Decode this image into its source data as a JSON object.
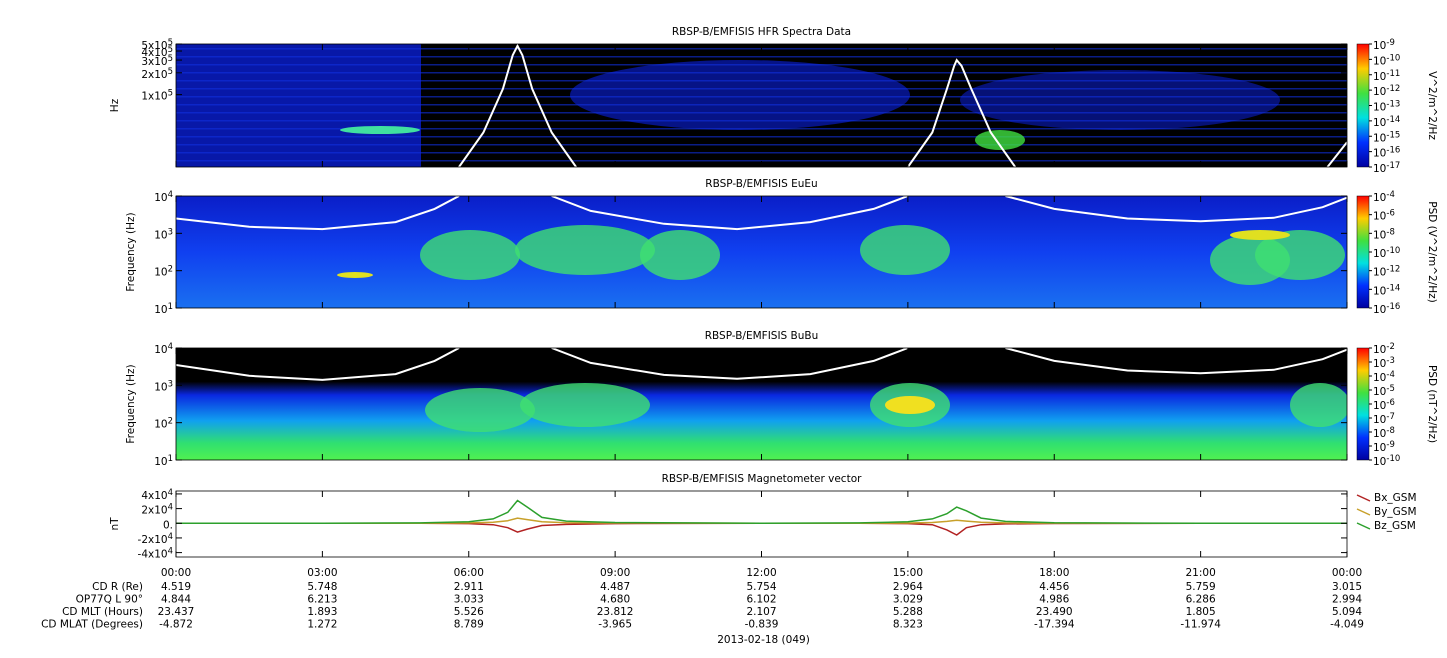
{
  "chart_data": [
    {
      "type": "spectrogram",
      "title": "RBSP-B/EMFISIS  HFR Spectra Data",
      "ylabel": "Hz",
      "log_y": true,
      "xlim": [
        0,
        24
      ],
      "ylim": [
        10000,
        500000
      ],
      "yticks": [
        {
          "value": 100000,
          "label": "1x10^5"
        },
        {
          "value": 200000,
          "label": "2x10^5"
        },
        {
          "value": 300000,
          "label": "3x10^5"
        },
        {
          "value": 400000,
          "label": "4x10^5"
        },
        {
          "value": 500000,
          "label": "5x10^5"
        }
      ],
      "colorbar": {
        "label": "V^2/m^2/Hz",
        "lim": [
          1e-17,
          1e-09
        ],
        "ticks": [
          {
            "value": 1e-09,
            "label": "10^-9"
          },
          {
            "value": 1e-10,
            "label": "10^-10"
          },
          {
            "value": 1e-11,
            "label": "10^-11"
          },
          {
            "value": 1e-12,
            "label": "10^-12"
          },
          {
            "value": 1e-13,
            "label": "10^-13"
          },
          {
            "value": 1e-14,
            "label": "10^-14"
          },
          {
            "value": 1e-15,
            "label": "10^-15"
          },
          {
            "value": 1e-16,
            "label": "10^-16"
          },
          {
            "value": 1e-17,
            "label": "10^-17"
          }
        ]
      },
      "overlay": {
        "color": "#ffffff",
        "x": [
          5.8,
          6.3,
          6.7,
          6.9,
          7.0,
          7.1,
          7.3,
          7.7,
          8.2,
          null,
          15.0,
          15.5,
          15.8,
          15.95,
          16.0,
          16.1,
          16.3,
          16.7,
          17.2,
          null,
          23.6,
          24
        ],
        "values": [
          10000,
          30000,
          120000,
          350000,
          470000,
          350000,
          120000,
          30000,
          10000,
          null,
          10000,
          30000,
          120000,
          250000,
          300000,
          250000,
          120000,
          30000,
          10000,
          null,
          10000,
          22000
        ]
      }
    },
    {
      "type": "spectrogram",
      "title": "RBSP-B/EMFISIS  EuEu",
      "ylabel": "Frequency (Hz)",
      "log_y": true,
      "xlim": [
        0,
        24
      ],
      "ylim": [
        10,
        10000
      ],
      "yticks": [
        {
          "value": 10,
          "label": "10^1"
        },
        {
          "value": 100,
          "label": "10^2"
        },
        {
          "value": 1000,
          "label": "10^3"
        },
        {
          "value": 10000,
          "label": "10^4"
        }
      ],
      "colorbar": {
        "label": "PSD (V^2/m^2/Hz)",
        "lim": [
          1e-16,
          0.0001
        ],
        "ticks": [
          {
            "value": 0.0001,
            "label": "10^-4"
          },
          {
            "value": 1e-06,
            "label": "10^-6"
          },
          {
            "value": 1e-08,
            "label": "10^-8"
          },
          {
            "value": 1e-10,
            "label": "10^-10"
          },
          {
            "value": 1e-12,
            "label": "10^-12"
          },
          {
            "value": 1e-14,
            "label": "10^-14"
          },
          {
            "value": 1e-16,
            "label": "10^-16"
          }
        ]
      },
      "overlay": {
        "color": "#ffffff",
        "x": [
          0,
          1.5,
          3,
          4.5,
          5.3,
          5.8,
          null,
          7.7,
          8.5,
          10,
          11.5,
          13,
          14.3,
          15,
          null,
          17,
          18,
          19.5,
          21,
          22.5,
          23.5,
          24
        ],
        "values": [
          2500,
          1500,
          1300,
          2000,
          4500,
          10000,
          null,
          10000,
          4000,
          1800,
          1300,
          2000,
          4500,
          10000,
          null,
          10000,
          4500,
          2500,
          2100,
          2600,
          5000,
          9000
        ]
      }
    },
    {
      "type": "spectrogram",
      "title": "RBSP-B/EMFISIS  BuBu",
      "ylabel": "Frequency (Hz)",
      "log_y": true,
      "xlim": [
        0,
        24
      ],
      "ylim": [
        10,
        10000
      ],
      "yticks": [
        {
          "value": 10,
          "label": "10^1"
        },
        {
          "value": 100,
          "label": "10^2"
        },
        {
          "value": 1000,
          "label": "10^3"
        },
        {
          "value": 10000,
          "label": "10^4"
        }
      ],
      "colorbar": {
        "label": "PSD (nT^2/Hz)",
        "lim": [
          1e-10,
          0.01
        ],
        "ticks": [
          {
            "value": 0.01,
            "label": "10^-2"
          },
          {
            "value": 0.001,
            "label": "10^-3"
          },
          {
            "value": 0.0001,
            "label": "10^-4"
          },
          {
            "value": 1e-05,
            "label": "10^-5"
          },
          {
            "value": 1e-06,
            "label": "10^-6"
          },
          {
            "value": 1e-07,
            "label": "10^-7"
          },
          {
            "value": 1e-08,
            "label": "10^-8"
          },
          {
            "value": 1e-09,
            "label": "10^-9"
          },
          {
            "value": 1e-10,
            "label": "10^-10"
          }
        ]
      },
      "overlay": {
        "color": "#ffffff",
        "x": [
          0,
          1.5,
          3,
          4.5,
          5.3,
          5.8,
          null,
          7.7,
          8.5,
          10,
          11.5,
          13,
          14.3,
          15,
          null,
          17,
          18,
          19.5,
          21,
          22.5,
          23.5,
          24
        ],
        "values": [
          3500,
          1800,
          1400,
          2000,
          4500,
          10000,
          null,
          10000,
          4000,
          1900,
          1500,
          2000,
          4500,
          10000,
          null,
          10000,
          4500,
          2500,
          2100,
          2600,
          5000,
          9000
        ]
      }
    },
    {
      "type": "line",
      "title": "RBSP-B/EMFISIS  Magnetometer vector",
      "ylabel": "nT",
      "xlim": [
        0,
        24
      ],
      "ylim": [
        -46000,
        44000
      ],
      "yticks": [
        {
          "value": 40000,
          "label": "4x10^4"
        },
        {
          "value": 20000,
          "label": "2x10^4"
        },
        {
          "value": 0,
          "label": "0."
        },
        {
          "value": -20000,
          "label": "-2x10^4"
        },
        {
          "value": -40000,
          "label": "-4x10^4"
        }
      ],
      "xticks": [
        {
          "value": 0,
          "label": "00:00"
        },
        {
          "value": 3,
          "label": "03:00"
        },
        {
          "value": 6,
          "label": "06:00"
        },
        {
          "value": 9,
          "label": "09:00"
        },
        {
          "value": 12,
          "label": "12:00"
        },
        {
          "value": 15,
          "label": "15:00"
        },
        {
          "value": 18,
          "label": "18:00"
        },
        {
          "value": 21,
          "label": "21:00"
        },
        {
          "value": 24,
          "label": "00:00"
        }
      ],
      "x": [
        0,
        3,
        5,
        6,
        6.5,
        6.8,
        7,
        7.2,
        7.5,
        8,
        9,
        12,
        14,
        15,
        15.5,
        15.8,
        16,
        16.2,
        16.5,
        17,
        18,
        21,
        24
      ],
      "series": [
        {
          "name": "Bx_GSM",
          "color": "#b22222",
          "values": [
            0,
            0,
            0,
            -500,
            -2000,
            -6000,
            -12000,
            -8000,
            -3000,
            -1500,
            -500,
            0,
            0,
            -500,
            -2000,
            -9000,
            -16000,
            -6000,
            -2000,
            -800,
            -300,
            0,
            0
          ]
        },
        {
          "name": "By_GSM",
          "color": "#c8a02a",
          "values": [
            0,
            0,
            0,
            500,
            1500,
            3500,
            7000,
            5000,
            2000,
            800,
            300,
            0,
            0,
            300,
            1000,
            2500,
            4000,
            3000,
            1500,
            500,
            200,
            0,
            0
          ]
        },
        {
          "name": "Bz_GSM",
          "color": "#2ca02c",
          "values": [
            0,
            0,
            500,
            2000,
            6000,
            15000,
            31000,
            22000,
            8000,
            3000,
            1000,
            0,
            500,
            2000,
            6000,
            13000,
            22000,
            17000,
            7000,
            2500,
            800,
            0,
            0
          ]
        }
      ],
      "ephemeris": [
        {
          "label": "CD R (Re)",
          "values": [
            "4.519",
            "5.748",
            "2.911",
            "4.487",
            "5.754",
            "2.964",
            "4.456",
            "5.759",
            "3.015"
          ]
        },
        {
          "label": "OP77Q L 90°",
          "values": [
            "4.844",
            "6.213",
            "3.033",
            "4.680",
            "6.102",
            "3.029",
            "4.986",
            "6.286",
            "2.994"
          ]
        },
        {
          "label": "CD MLT (Hours)",
          "values": [
            "23.437",
            "1.893",
            "5.526",
            "23.812",
            "2.107",
            "5.288",
            "23.490",
            "1.805",
            "5.094"
          ]
        },
        {
          "label": "CD MLAT (Degrees)",
          "values": [
            "-4.872",
            "1.272",
            "8.789",
            "-3.965",
            "-0.839",
            "8.323",
            "-17.394",
            "-11.974",
            "-4.049"
          ]
        }
      ],
      "date": "2013-02-18 (049)"
    }
  ]
}
